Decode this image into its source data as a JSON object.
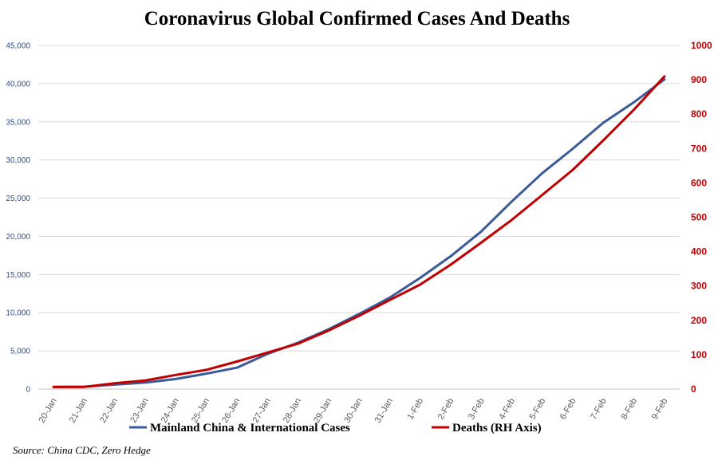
{
  "chart_data": {
    "type": "line",
    "title": "Coronavirus Global Confirmed Cases And Deaths",
    "source": "Source: China CDC, Zero Hedge",
    "categories": [
      "20-Jan",
      "21-Jan",
      "22-Jan",
      "23-Jan",
      "24-Jan",
      "25-Jan",
      "26-Jan",
      "27-Jan",
      "28-Jan",
      "29-Jan",
      "30-Jan",
      "31-Jan",
      "1-Feb",
      "2-Feb",
      "3-Feb",
      "4-Feb",
      "5-Feb",
      "6-Feb",
      "7-Feb",
      "8-Feb",
      "9-Feb"
    ],
    "left_axis": {
      "ylim": [
        0,
        45000
      ],
      "ticks": [
        0,
        5000,
        10000,
        15000,
        20000,
        25000,
        30000,
        35000,
        40000,
        45000
      ],
      "tick_labels": [
        "0",
        "5,000",
        "10,000",
        "15,000",
        "20,000",
        "25,000",
        "30,000",
        "35,000",
        "40,000",
        "45,000"
      ],
      "color": "#2f4f8f"
    },
    "right_axis": {
      "ylim": [
        0,
        1000
      ],
      "ticks": [
        0,
        100,
        200,
        300,
        400,
        500,
        600,
        700,
        800,
        900,
        1000
      ],
      "tick_labels": [
        "0",
        "100",
        "200",
        "300",
        "400",
        "500",
        "600",
        "700",
        "800",
        "900",
        "1000"
      ],
      "color": "#c00000"
    },
    "series": [
      {
        "name": "Mainland China & International Cases",
        "axis": "left",
        "color": "#3a5a98",
        "values": [
          282,
          314,
          581,
          846,
          1320,
          2014,
          2798,
          4593,
          6065,
          7818,
          9826,
          11953,
          14557,
          17391,
          20630,
          24554,
          28276,
          31481,
          34886,
          37558,
          40553
        ]
      },
      {
        "name": "Deaths (RH Axis)",
        "axis": "right",
        "color": "#c00000",
        "values": [
          6,
          6,
          17,
          25,
          41,
          56,
          80,
          106,
          132,
          170,
          213,
          259,
          304,
          362,
          426,
          492,
          565,
          638,
          724,
          813,
          910
        ]
      }
    ],
    "grid": "horizontal",
    "legend_position": "bottom"
  }
}
